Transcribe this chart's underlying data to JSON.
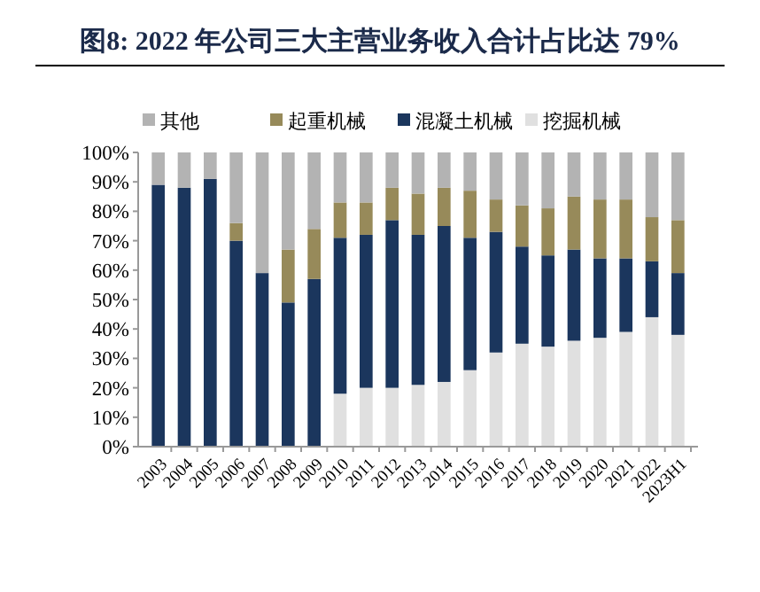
{
  "chart_data": {
    "type": "bar",
    "title": "图8:  2022 年公司三大主营业务收入合计占比达 79%",
    "stacked": true,
    "legend": "top",
    "grid": false,
    "categories": [
      "2003",
      "2004",
      "2005",
      "2006",
      "2007",
      "2008",
      "2009",
      "2010",
      "2011",
      "2012",
      "2013",
      "2014",
      "2015",
      "2016",
      "2017",
      "2018",
      "2019",
      "2020",
      "2021",
      "2022",
      "2023H1"
    ],
    "series": [
      {
        "name": "挖掘机械",
        "color": "#e0e0e0",
        "values": [
          0,
          0,
          0,
          0,
          0,
          0,
          0,
          18,
          20,
          20,
          21,
          22,
          26,
          32,
          35,
          34,
          36,
          37,
          39,
          44,
          38
        ]
      },
      {
        "name": "混凝土机械",
        "color": "#1b365d",
        "values": [
          89,
          88,
          91,
          70,
          59,
          49,
          57,
          53,
          52,
          57,
          51,
          53,
          45,
          41,
          33,
          31,
          31,
          27,
          25,
          19,
          21
        ]
      },
      {
        "name": "起重机械",
        "color": "#978a5a",
        "values": [
          0,
          0,
          0,
          6,
          0,
          18,
          17,
          12,
          11,
          11,
          14,
          13,
          16,
          11,
          14,
          16,
          18,
          20,
          20,
          15,
          18
        ]
      },
      {
        "name": "其他",
        "color": "#b3b3b3",
        "values": [
          11,
          12,
          9,
          24,
          41,
          33,
          26,
          17,
          17,
          12,
          14,
          12,
          13,
          16,
          18,
          19,
          15,
          16,
          16,
          22,
          23
        ]
      }
    ],
    "ylim": [
      0,
      100
    ],
    "yticks": [
      {
        "value": 0,
        "label": "0%"
      },
      {
        "value": 10,
        "label": "10%"
      },
      {
        "value": 20,
        "label": "20%"
      },
      {
        "value": 30,
        "label": "30%"
      },
      {
        "value": 40,
        "label": "40%"
      },
      {
        "value": 50,
        "label": "50%"
      },
      {
        "value": 60,
        "label": "60%"
      },
      {
        "value": 70,
        "label": "70%"
      },
      {
        "value": 80,
        "label": "80%"
      },
      {
        "value": 90,
        "label": "90%"
      },
      {
        "value": 100,
        "label": "100%"
      }
    ]
  }
}
